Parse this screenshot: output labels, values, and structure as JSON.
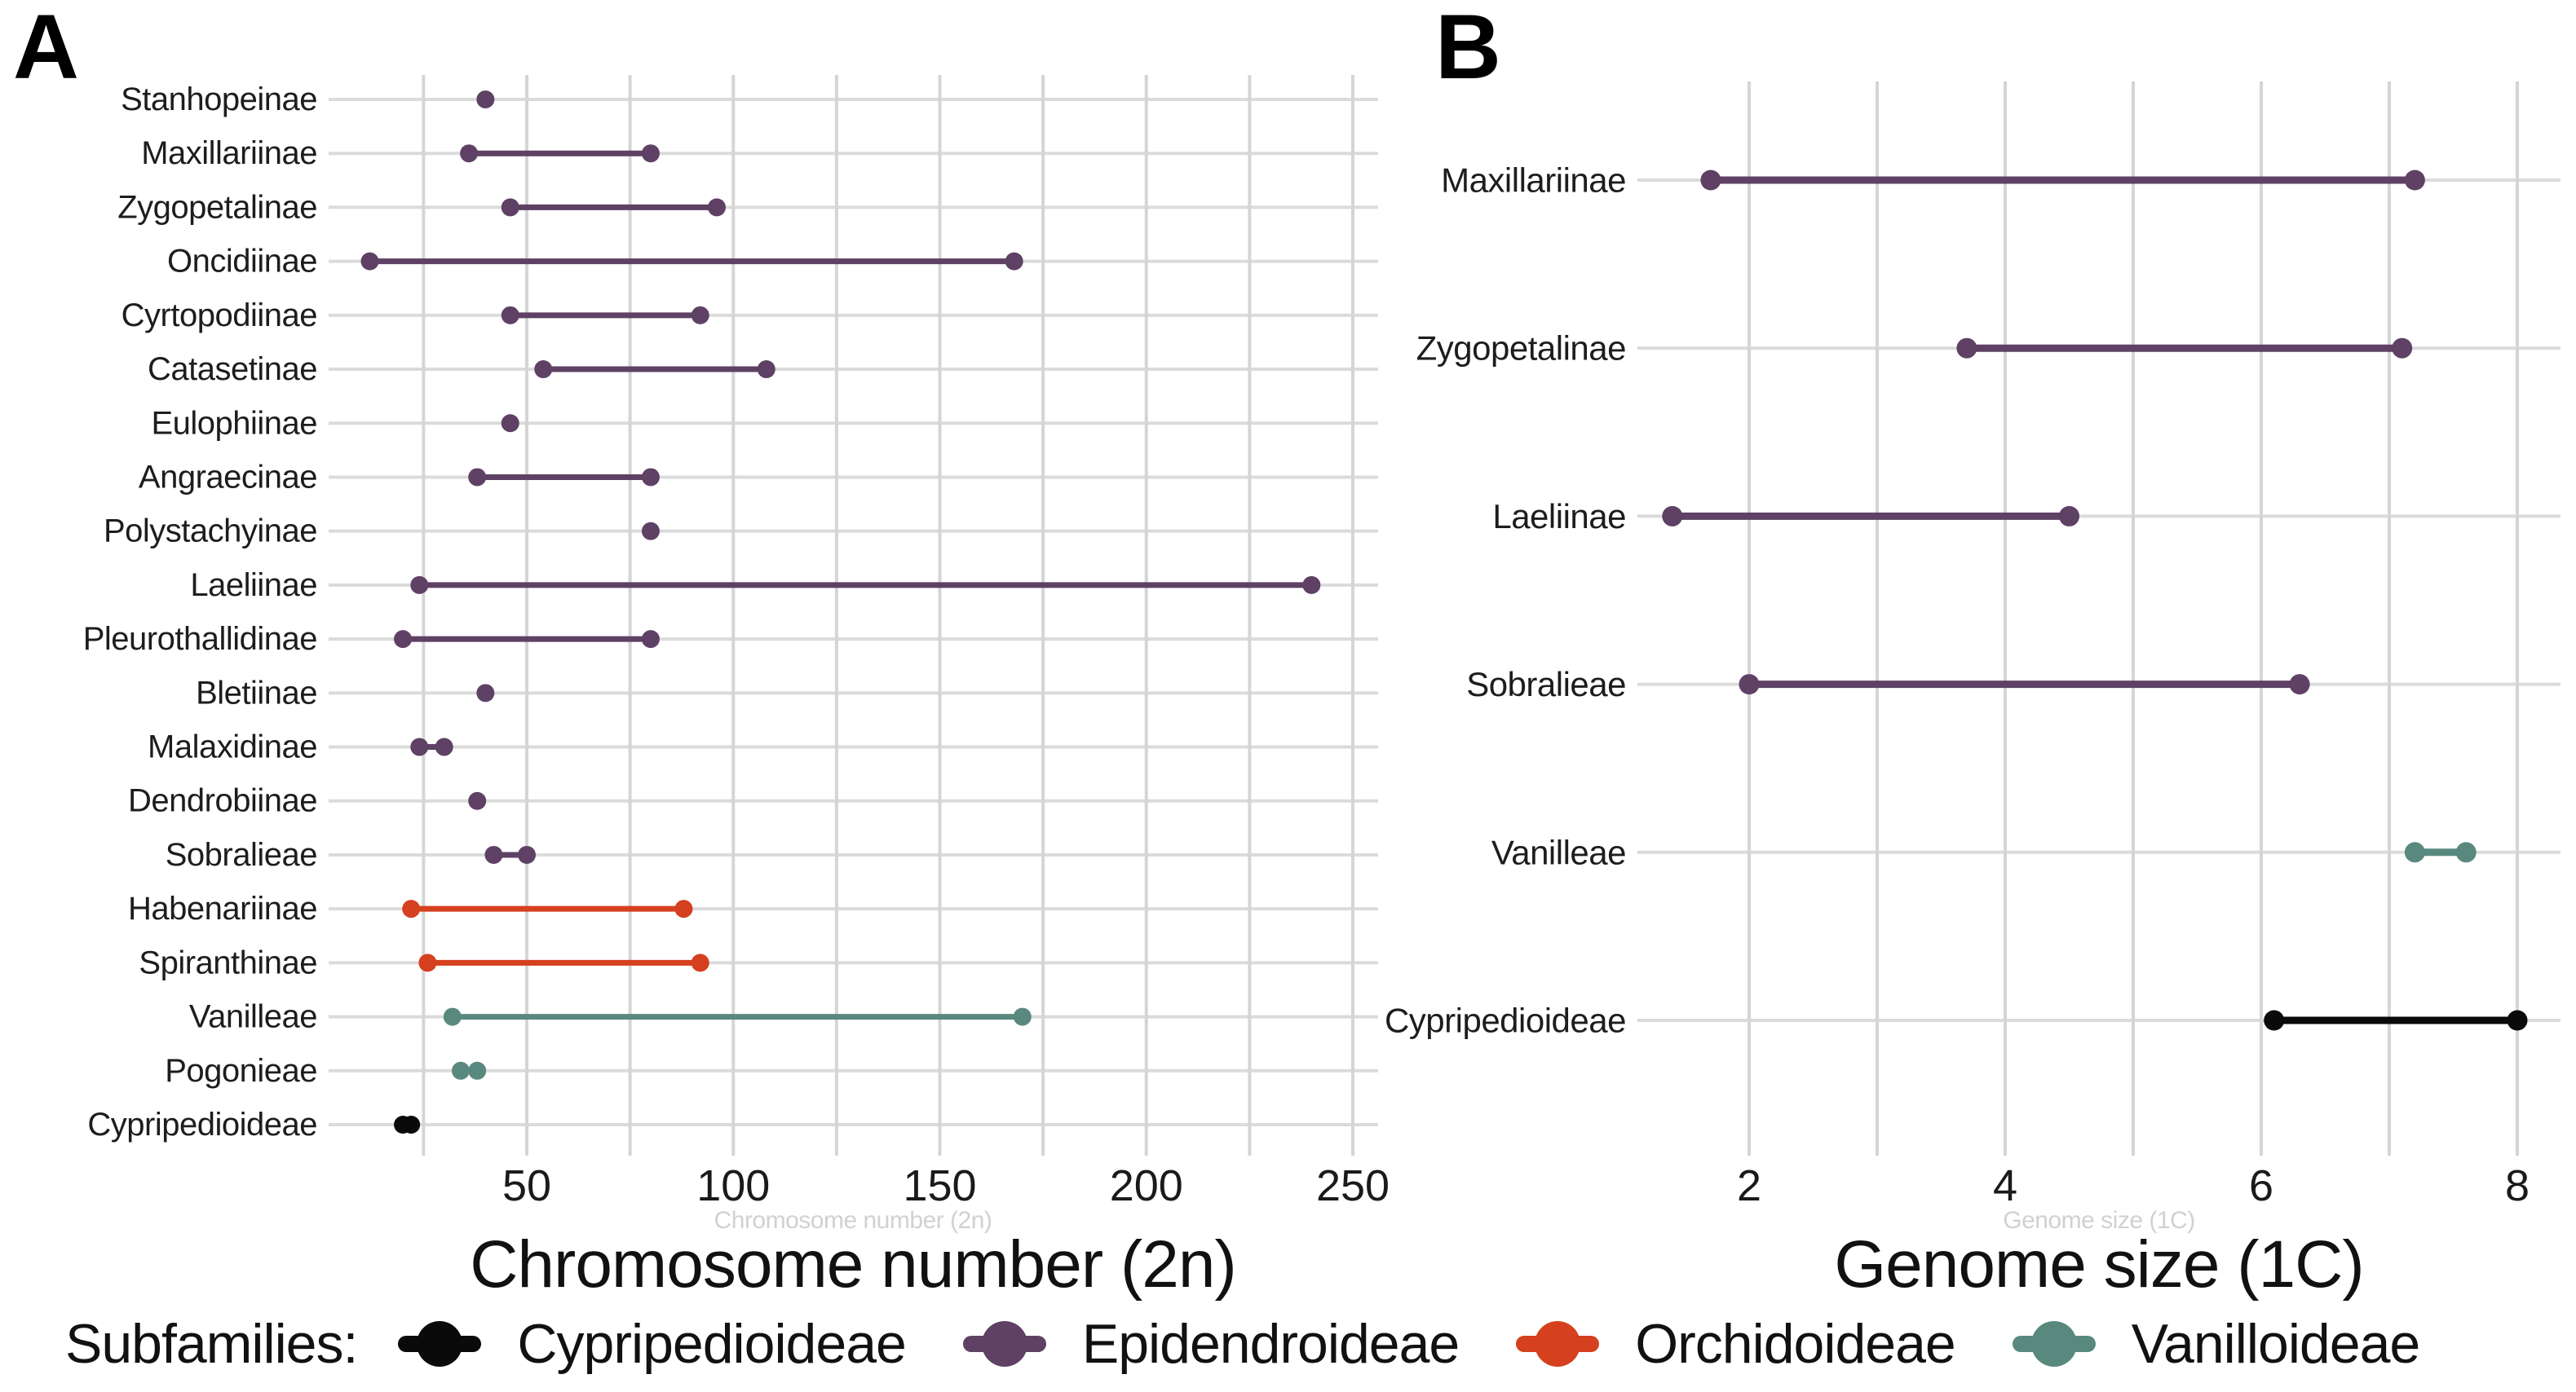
{
  "panels": [
    {
      "label": "A",
      "x_axis_title": "Chromosome number (2n)"
    },
    {
      "label": "B",
      "x_axis_title": "Genome size (1C)"
    }
  ],
  "legend": {
    "title": "Subfamilies:",
    "items": [
      {
        "label": "Cypripedioideae",
        "color": "#0a0a0a"
      },
      {
        "label": "Epidendroideae",
        "color": "#5e4164"
      },
      {
        "label": "Orchidoideae",
        "color": "#d5401f"
      },
      {
        "label": "Vanilloideae",
        "color": "#59897e"
      }
    ]
  },
  "colors": {
    "background": "#ffffff",
    "gridline": "#d5d5d5",
    "row_line": "#dbdbdb",
    "text": "#1d1d1d",
    "tick_text": "#1a1a1a",
    "Cypripedioideae": "#0a0a0a",
    "Epidendroideae": "#5e4164",
    "Orchidoideae": "#d5401f",
    "Vanilloideae": "#59897e"
  },
  "chart_data": [
    {
      "type": "dumbbell",
      "panel": "A",
      "title": "",
      "xlabel": "Chromosome number (2n)",
      "ylabel": "",
      "xlim": [
        2,
        256
      ],
      "xticks": [
        50,
        100,
        150,
        200,
        250
      ],
      "gridlines": [
        25,
        50,
        75,
        100,
        125,
        150,
        175,
        200,
        225,
        250
      ],
      "grid": "on",
      "legend_position": "bottom",
      "rows": [
        {
          "category": "Stanhopeinae",
          "subfamily": "Epidendroideae",
          "min": 40,
          "max": 40
        },
        {
          "category": "Maxillariinae",
          "subfamily": "Epidendroideae",
          "min": 36,
          "max": 80
        },
        {
          "category": "Zygopetalinae",
          "subfamily": "Epidendroideae",
          "min": 46,
          "max": 96
        },
        {
          "category": "Oncidiinae",
          "subfamily": "Epidendroideae",
          "min": 12,
          "max": 168
        },
        {
          "category": "Cyrtopodiinae",
          "subfamily": "Epidendroideae",
          "min": 46,
          "max": 92
        },
        {
          "category": "Catasetinae",
          "subfamily": "Epidendroideae",
          "min": 54,
          "max": 108
        },
        {
          "category": "Eulophiinae",
          "subfamily": "Epidendroideae",
          "min": 46,
          "max": 46
        },
        {
          "category": "Angraecinae",
          "subfamily": "Epidendroideae",
          "min": 38,
          "max": 80
        },
        {
          "category": "Polystachyinae",
          "subfamily": "Epidendroideae",
          "min": 80,
          "max": 80
        },
        {
          "category": "Laeliinae",
          "subfamily": "Epidendroideae",
          "min": 24,
          "max": 240
        },
        {
          "category": "Pleurothallidinae",
          "subfamily": "Epidendroideae",
          "min": 20,
          "max": 80
        },
        {
          "category": "Bletiinae",
          "subfamily": "Epidendroideae",
          "min": 40,
          "max": 40
        },
        {
          "category": "Malaxidinae",
          "subfamily": "Epidendroideae",
          "min": 24,
          "max": 30
        },
        {
          "category": "Dendrobiinae",
          "subfamily": "Epidendroideae",
          "min": 38,
          "max": 38
        },
        {
          "category": "Sobralieae",
          "subfamily": "Epidendroideae",
          "min": 42,
          "max": 50
        },
        {
          "category": "Habenariinae",
          "subfamily": "Orchidoideae",
          "min": 22,
          "max": 88
        },
        {
          "category": "Spiranthinae",
          "subfamily": "Orchidoideae",
          "min": 26,
          "max": 92
        },
        {
          "category": "Vanilleae",
          "subfamily": "Vanilloideae",
          "min": 32,
          "max": 170
        },
        {
          "category": "Pogonieae",
          "subfamily": "Vanilloideae",
          "min": 34,
          "max": 38
        },
        {
          "category": "Cypripedioideae",
          "subfamily": "Cypripedioideae",
          "min": 20,
          "max": 22
        }
      ]
    },
    {
      "type": "dumbbell",
      "panel": "B",
      "title": "",
      "xlabel": "Genome size (1C)",
      "ylabel": "",
      "xlim": [
        1.1,
        8.4
      ],
      "xticks": [
        2,
        4,
        6,
        8
      ],
      "gridlines": [
        2,
        3,
        4,
        5,
        6,
        7,
        8
      ],
      "grid": "on",
      "legend_position": "bottom",
      "rows": [
        {
          "category": "Maxillariinae",
          "subfamily": "Epidendroideae",
          "min": 1.7,
          "max": 7.2
        },
        {
          "category": "Zygopetalinae",
          "subfamily": "Epidendroideae",
          "min": 3.7,
          "max": 7.1
        },
        {
          "category": "Laeliinae",
          "subfamily": "Epidendroideae",
          "min": 1.4,
          "max": 4.5
        },
        {
          "category": "Sobralieae",
          "subfamily": "Epidendroideae",
          "min": 2.0,
          "max": 6.3
        },
        {
          "category": "Vanilleae",
          "subfamily": "Vanilloideae",
          "min": 7.2,
          "max": 7.6
        },
        {
          "category": "Cypripedioideae",
          "subfamily": "Cypripedioideae",
          "min": 6.1,
          "max": 8.0
        }
      ]
    }
  ]
}
